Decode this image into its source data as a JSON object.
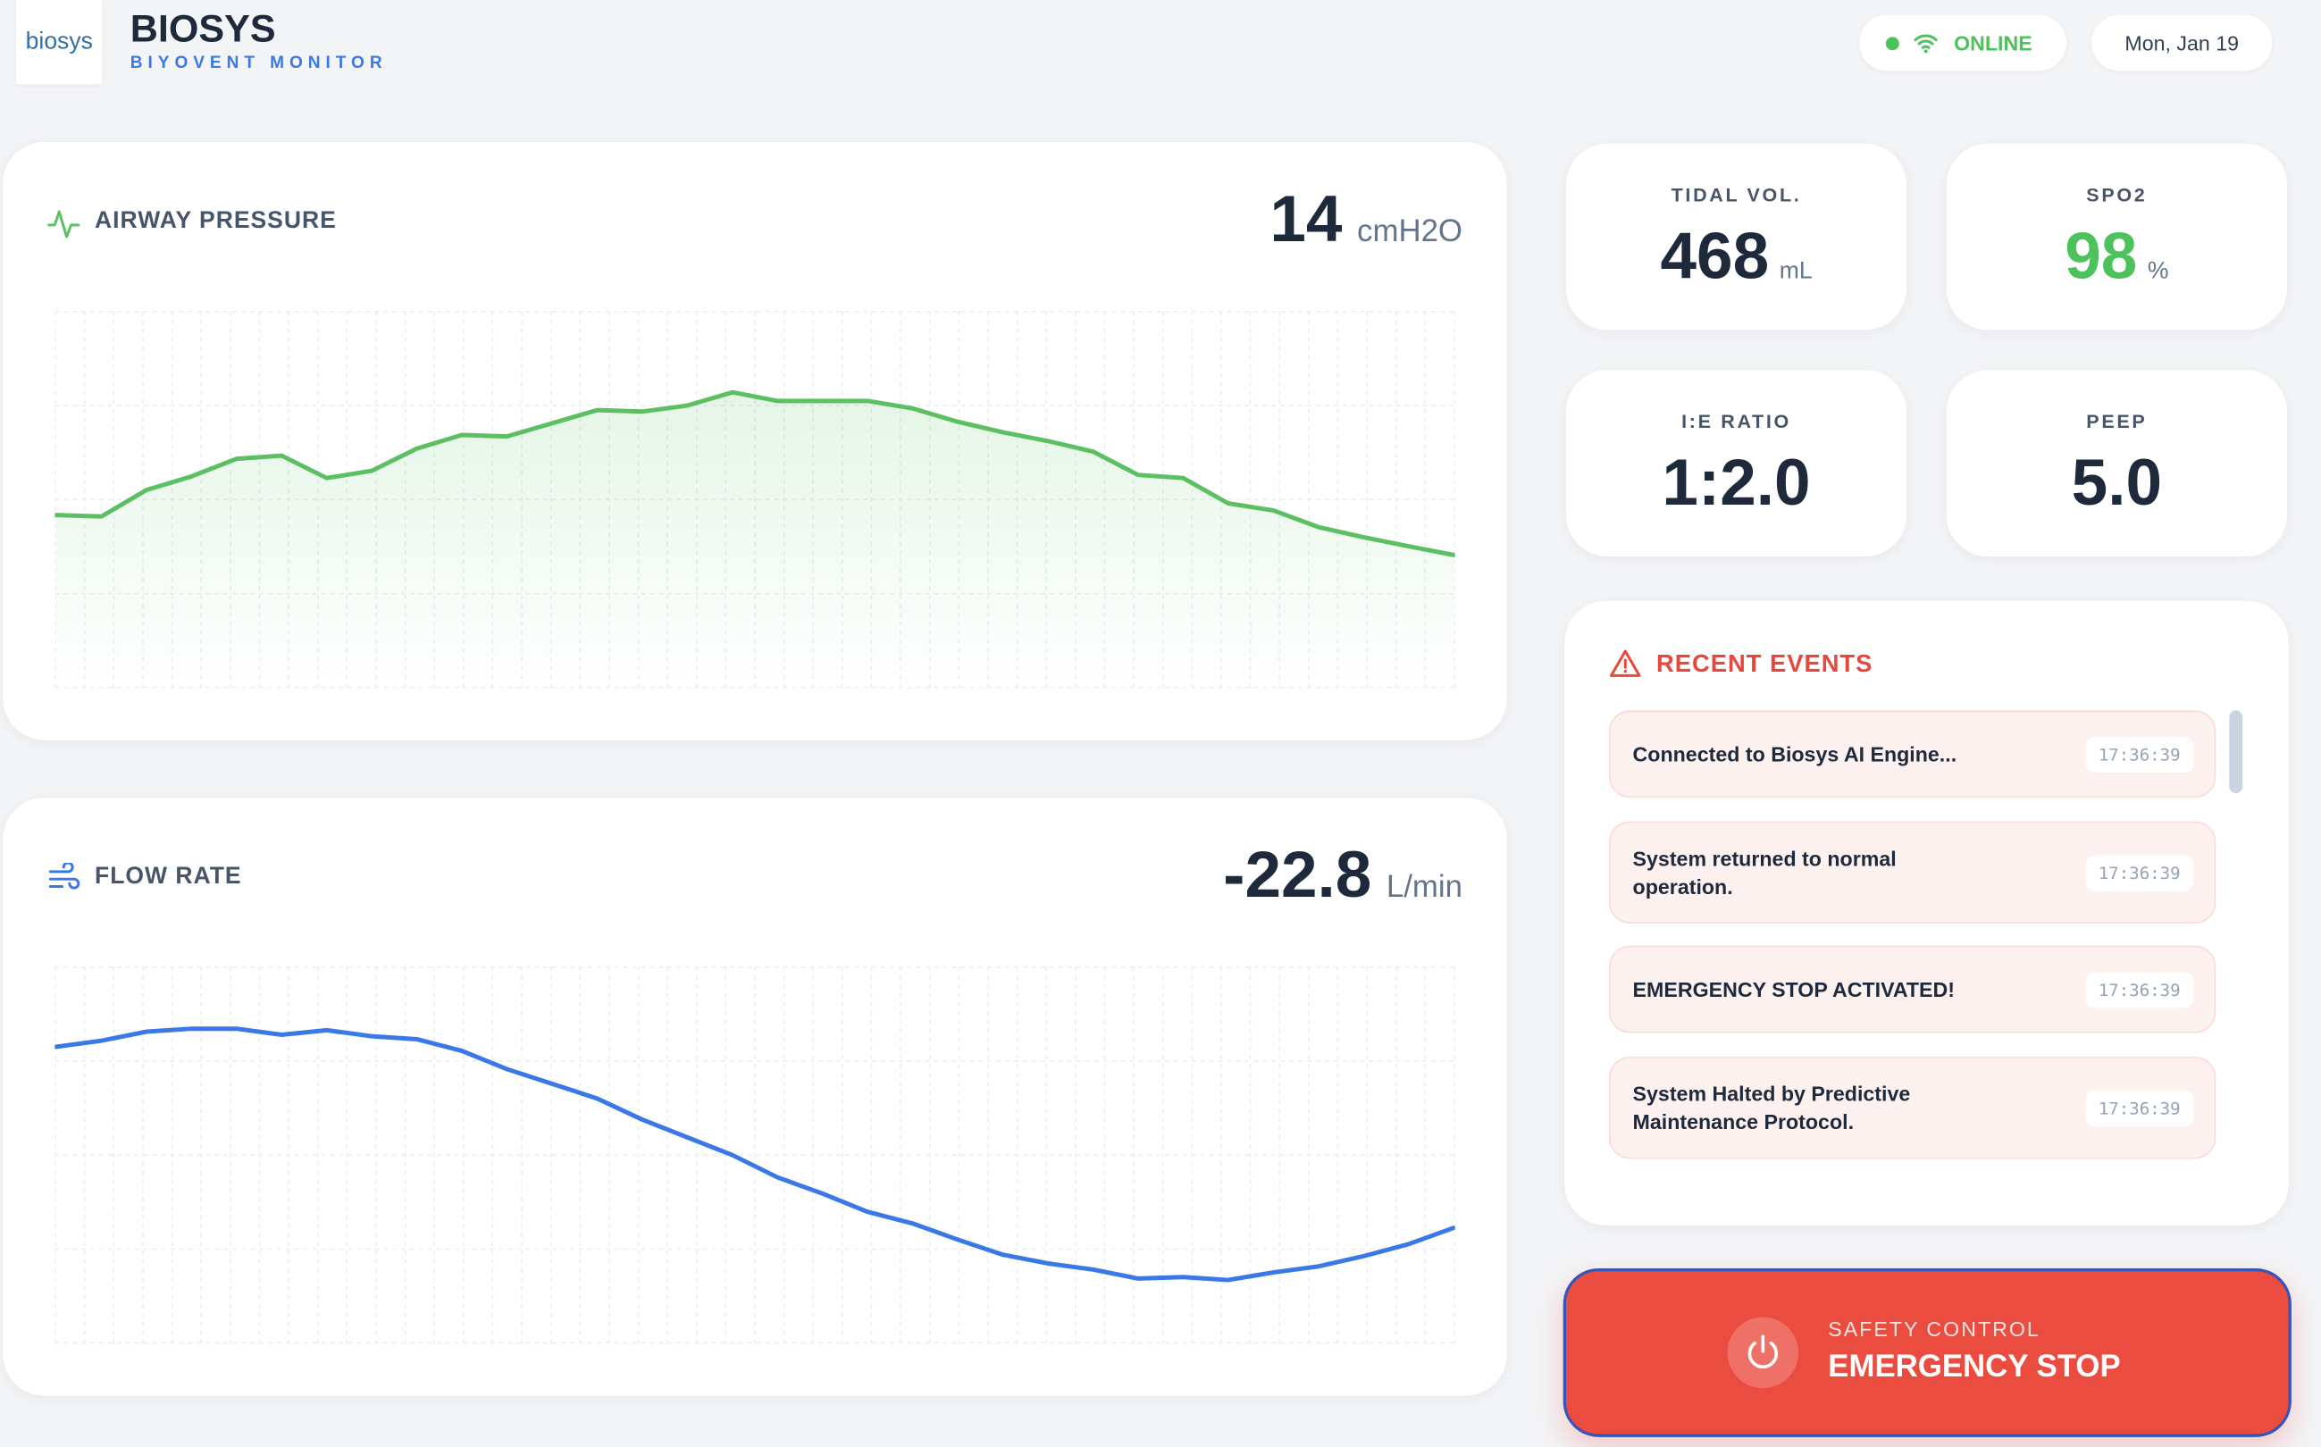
{
  "header": {
    "logo_text": "biosys",
    "title": "BIOSYS",
    "subtitle": "BIYOVENT MONITOR",
    "status": "ONLINE",
    "date": "Mon, Jan 19"
  },
  "airway_pressure": {
    "label": "AIRWAY PRESSURE",
    "value": 14,
    "unit": "cmH2O",
    "waveform": {
      "type": "line",
      "color": "#5cc063",
      "ylim": [
        0,
        100
      ],
      "values": [
        45.9,
        45.5,
        52.5,
        56.1,
        60.8,
        61.6,
        55.7,
        57.6,
        63.5,
        67.1,
        66.7,
        70.2,
        73.7,
        73.3,
        74.9,
        78.4,
        76.1,
        76.1,
        76.1,
        74.1,
        70.6,
        67.8,
        65.5,
        62.7,
        56.5,
        55.7,
        49.0,
        47.1,
        42.7,
        40.0,
        37.6,
        35.3
      ]
    }
  },
  "flow_rate": {
    "label": "FLOW RATE",
    "value": -22.8,
    "unit": "L/min",
    "waveform": {
      "type": "line",
      "color": "#3b78e7",
      "ylim": [
        0,
        100
      ],
      "values": [
        78.7,
        80.3,
        82.7,
        83.5,
        83.5,
        81.9,
        83.1,
        81.5,
        80.7,
        77.6,
        72.8,
        68.9,
        65.0,
        59.4,
        54.7,
        50.0,
        44.1,
        39.8,
        35.0,
        31.9,
        27.6,
        23.6,
        21.3,
        19.7,
        17.3,
        17.7,
        16.9,
        18.9,
        20.5,
        23.2,
        26.4,
        30.7
      ]
    }
  },
  "metrics": [
    {
      "label": "TIDAL VOL.",
      "value": 468,
      "unit": "mL"
    },
    {
      "label": "SPO2",
      "value": 98,
      "unit": "%"
    },
    {
      "label": "I:E RATIO",
      "value": "1:2.0"
    },
    {
      "label": "PEEP",
      "value": "5.0"
    }
  ],
  "events": {
    "title": "RECENT EVENTS",
    "items": [
      {
        "message": "Connected to Biosys AI Engine...",
        "time": "17:36:39"
      },
      {
        "message": "System returned to normal operation.",
        "time": "17:36:39"
      },
      {
        "message": "EMERGENCY STOP ACTIVATED!",
        "time": "17:36:39"
      },
      {
        "message": "System Halted by Predictive Maintenance Protocol.",
        "time": "17:36:39"
      }
    ]
  },
  "emergency": {
    "caption": "SAFETY CONTROL",
    "label": "EMERGENCY STOP"
  }
}
